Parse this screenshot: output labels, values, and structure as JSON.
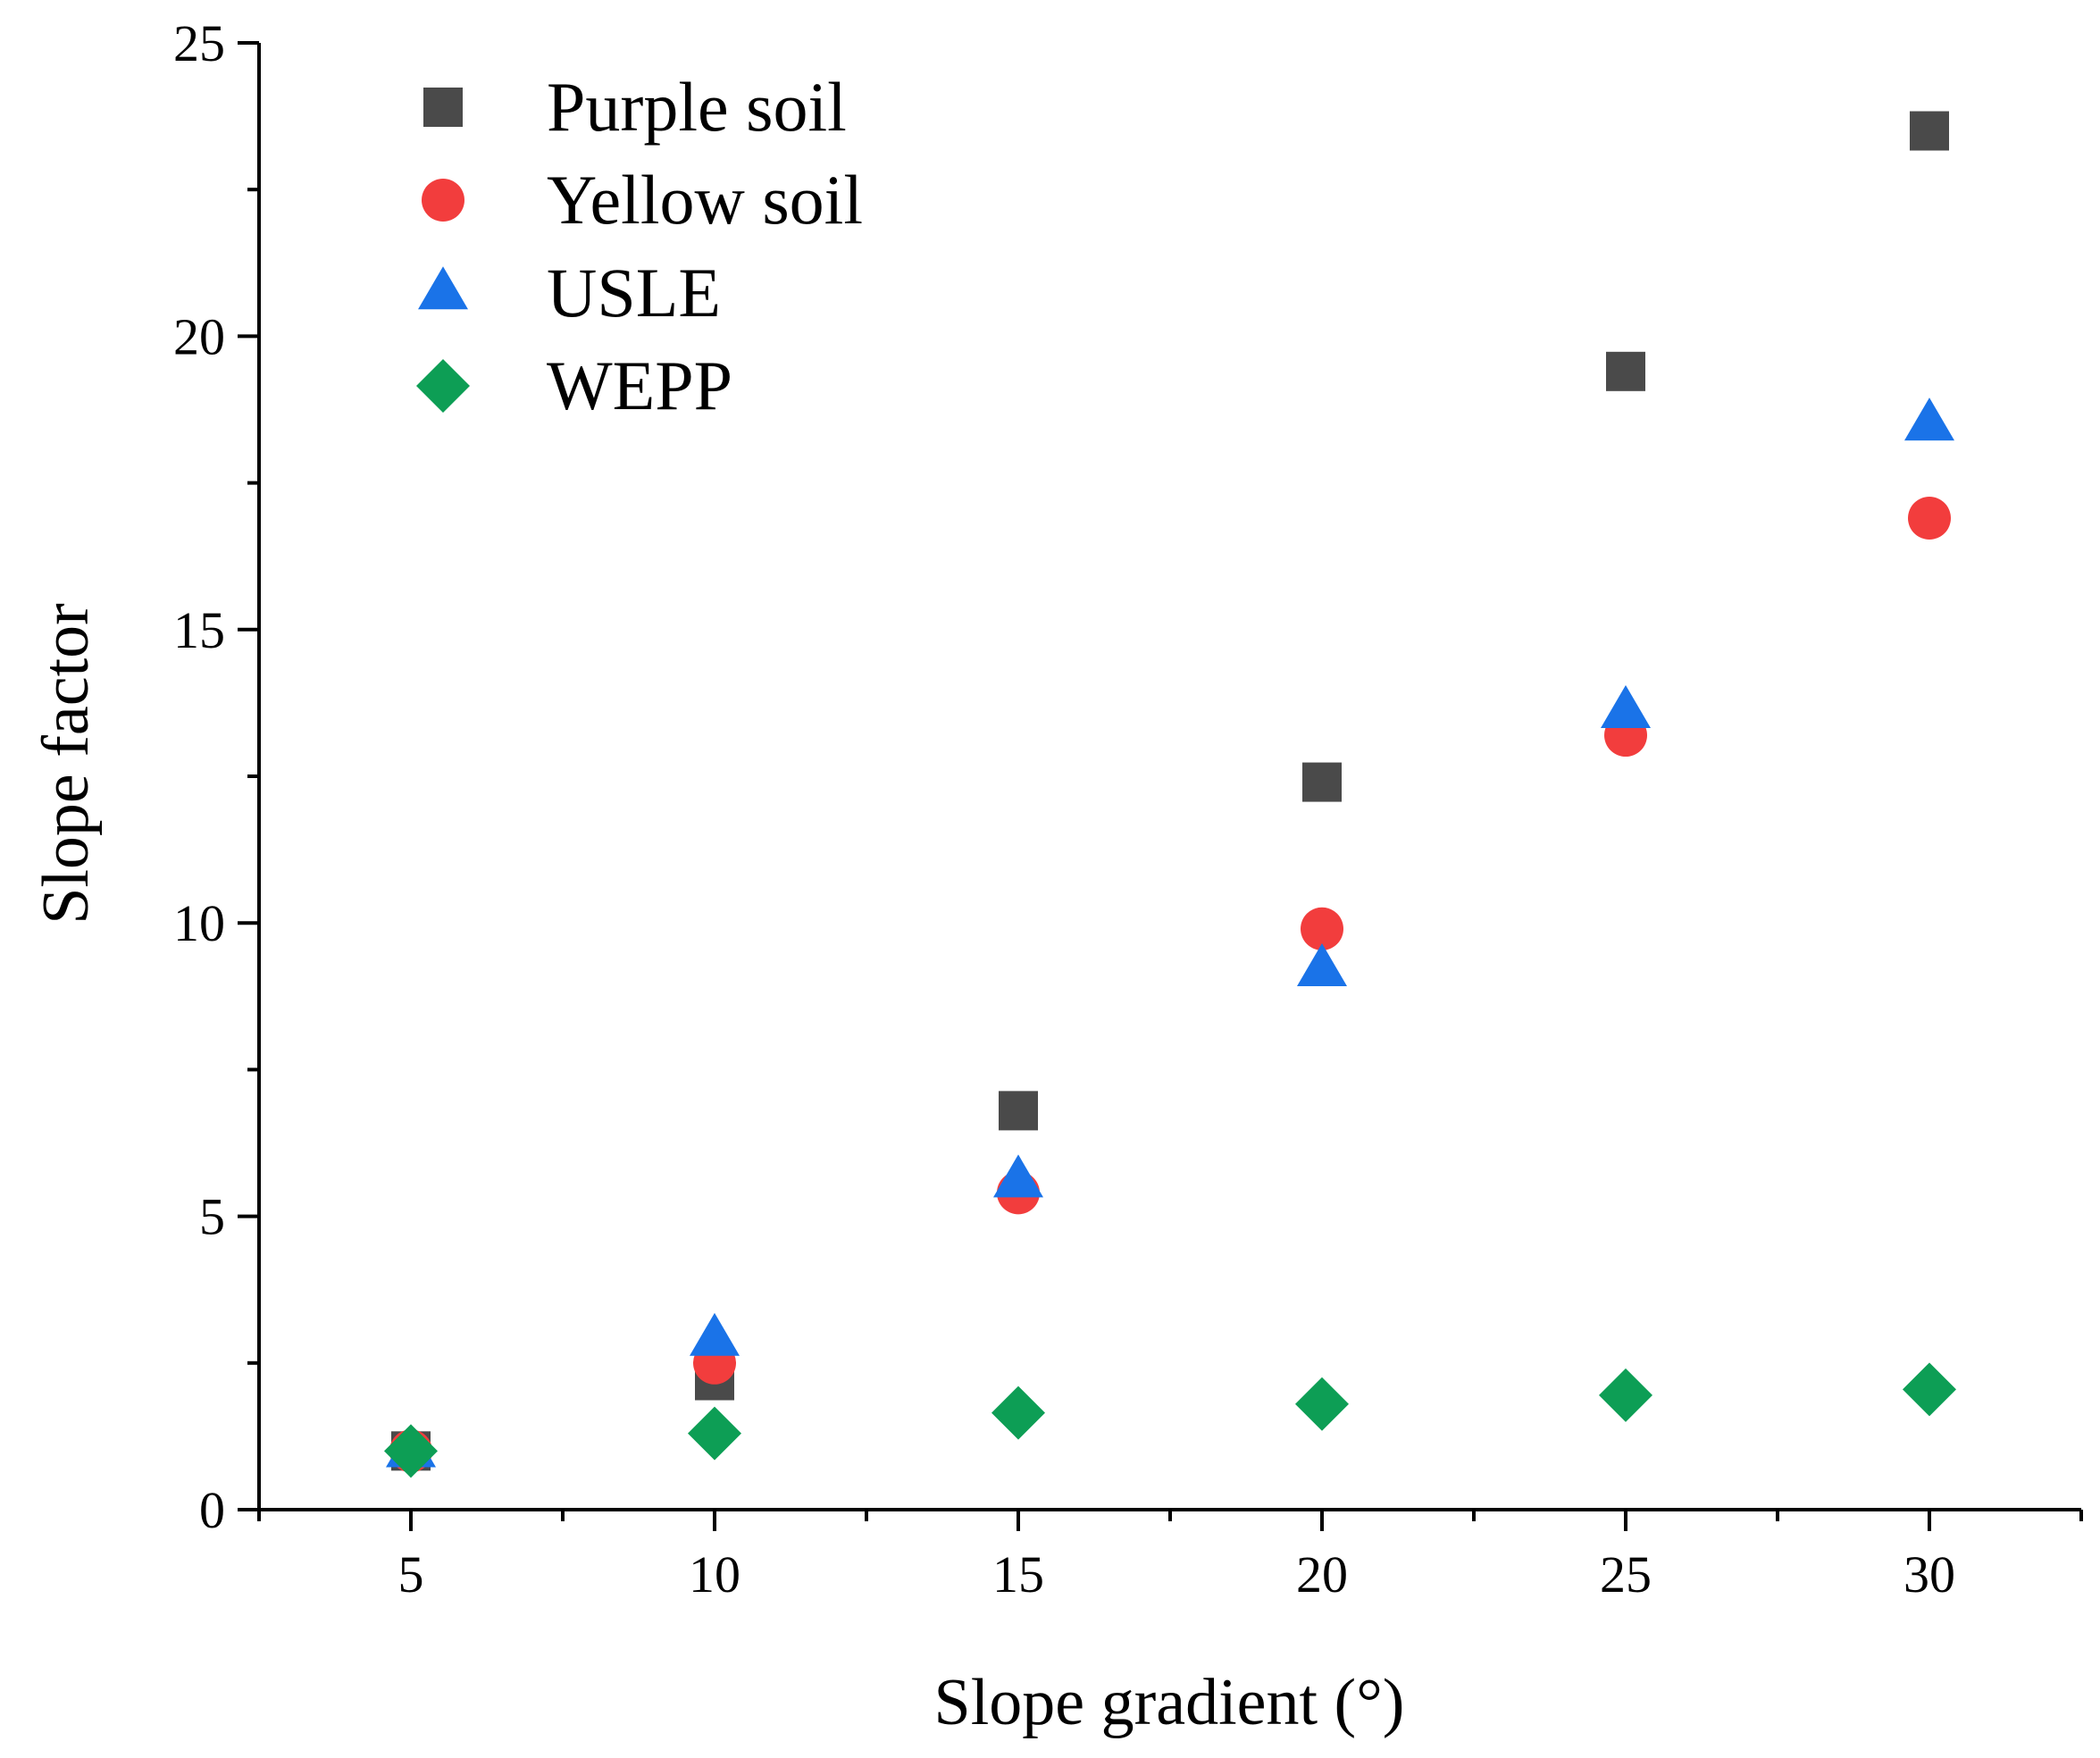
{
  "chart_data": {
    "type": "scatter",
    "title": "",
    "xlabel": "Slope gradient (°)",
    "ylabel": "Slope factor",
    "xlim": [
      2.5,
      32.5
    ],
    "ylim": [
      0,
      25
    ],
    "xticks": [
      5,
      10,
      15,
      20,
      25,
      30
    ],
    "yticks": [
      0,
      5,
      10,
      15,
      20,
      25
    ],
    "grid": false,
    "legend_position": "top-left",
    "x": [
      5,
      10,
      15,
      20,
      25,
      30
    ],
    "series": [
      {
        "name": "Purple soil",
        "marker": "square",
        "color": "#4a4a4a",
        "values": [
          1.0,
          2.2,
          6.8,
          12.4,
          19.4,
          23.5
        ]
      },
      {
        "name": "Yellow soil",
        "marker": "circle",
        "color": "#f23d3d",
        "values": [
          1.0,
          2.5,
          5.4,
          9.9,
          13.2,
          16.9
        ]
      },
      {
        "name": "USLE",
        "marker": "triangle",
        "color": "#1a73e8",
        "values": [
          1.0,
          2.9,
          5.6,
          9.2,
          13.6,
          18.5
        ]
      },
      {
        "name": "WEPP",
        "marker": "diamond",
        "color": "#0d9e55",
        "values": [
          1.0,
          1.3,
          1.65,
          1.8,
          1.95,
          2.05
        ]
      }
    ]
  }
}
